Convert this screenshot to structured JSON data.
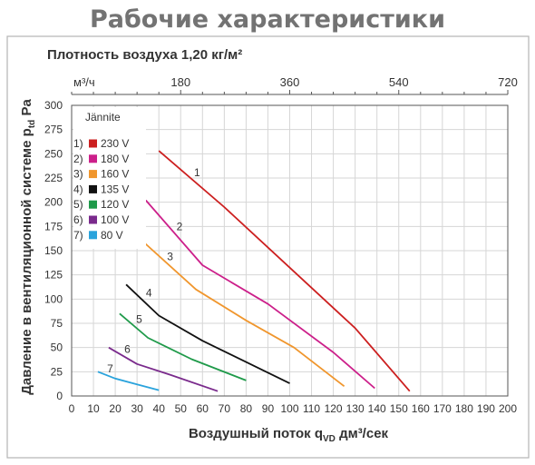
{
  "chart_data": {
    "type": "line",
    "title": "Рабочие характеристики",
    "subtitle": "Плотность воздуха 1,20 кг/м²",
    "xlabel": "Воздушный поток q",
    "xlabel_sub": "VD",
    "xlabel_unit": " дм³/сек",
    "ylabel": "Давление в вентиляционной системе p",
    "ylabel_sub": "td",
    "ylabel_unit": " Pa",
    "xlim": [
      0,
      200
    ],
    "ylim": [
      0,
      300
    ],
    "x_ticks": [
      0,
      10,
      20,
      30,
      40,
      50,
      60,
      70,
      80,
      90,
      100,
      110,
      120,
      130,
      140,
      150,
      160,
      170,
      180,
      190,
      200
    ],
    "y_ticks": [
      0,
      25,
      50,
      75,
      100,
      125,
      150,
      175,
      200,
      225,
      250,
      275,
      300
    ],
    "top_axis": {
      "unit": "м³/ч",
      "ticks": [
        180,
        360,
        540,
        720
      ],
      "ticks_x": [
        50,
        100,
        150,
        200
      ]
    },
    "grid": true,
    "legend_title": "Jännite",
    "legend_position": "top-left",
    "series": [
      {
        "name": "230 V",
        "marker": "1)",
        "label": "1",
        "color": "#cc1f1f",
        "x": [
          40,
          70,
          130,
          155
        ],
        "y": [
          253,
          195,
          70,
          5
        ]
      },
      {
        "name": "180 V",
        "marker": "2)",
        "label": "2",
        "color": "#cc1f8a",
        "x": [
          34,
          60,
          90,
          120,
          139
        ],
        "y": [
          202,
          135,
          95,
          45,
          8
        ]
      },
      {
        "name": "160 V",
        "marker": "3)",
        "label": "3",
        "color": "#f0962d",
        "x": [
          30,
          57,
          80,
          102,
          125
        ],
        "y": [
          165,
          110,
          78,
          50,
          10
        ]
      },
      {
        "name": "135 V",
        "marker": "4)",
        "label": "4",
        "color": "#111111",
        "x": [
          25,
          40,
          60,
          100
        ],
        "y": [
          115,
          83,
          57,
          13
        ]
      },
      {
        "name": "120 V",
        "marker": "5)",
        "label": "5",
        "color": "#1f9a4a",
        "x": [
          22,
          35,
          55,
          80
        ],
        "y": [
          85,
          60,
          38,
          16
        ]
      },
      {
        "name": "100 V",
        "marker": "6)",
        "label": "6",
        "color": "#7a2a8c",
        "x": [
          17,
          30,
          45,
          67
        ],
        "y": [
          50,
          33,
          22,
          5
        ]
      },
      {
        "name": "80 V",
        "marker": "7)",
        "label": "7",
        "color": "#2aa3dc",
        "x": [
          12,
          20,
          30,
          40
        ],
        "y": [
          25,
          18,
          12,
          6
        ]
      }
    ]
  }
}
